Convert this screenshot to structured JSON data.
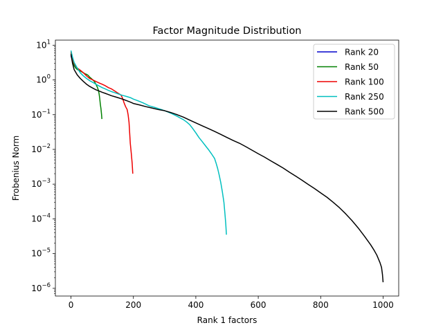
{
  "chart_data": {
    "type": "line",
    "title": "Factor Magnitude Distribution",
    "xlabel": "Rank 1 factors",
    "ylabel": "Frobenius Norm",
    "xlim": [
      -50,
      1050
    ],
    "ylim": [
      6e-07,
      14
    ],
    "yscale": "log",
    "grid": false,
    "legend_loc": "top-right",
    "x_ticks": [
      0,
      200,
      400,
      600,
      800,
      1000
    ],
    "y_ticks": [
      {
        "value": 10,
        "label": "10^1"
      },
      {
        "value": 1,
        "label": "10^0"
      },
      {
        "value": 0.1,
        "label": "10^-1"
      },
      {
        "value": 0.01,
        "label": "10^-2"
      },
      {
        "value": 0.001,
        "label": "10^-3"
      },
      {
        "value": 0.0001,
        "label": "10^-4"
      },
      {
        "value": 1e-05,
        "label": "10^-5"
      },
      {
        "value": 1e-06,
        "label": "10^-6"
      }
    ],
    "series": [
      {
        "name": "Rank 20",
        "color": "#0000cc",
        "points": [
          [
            0,
            5.0
          ],
          [
            3,
            4.0
          ],
          [
            6,
            3.5
          ],
          [
            9,
            3.1
          ],
          [
            12,
            2.8
          ],
          [
            15,
            2.5
          ],
          [
            18,
            2.3
          ],
          [
            20,
            2.2
          ]
        ]
      },
      {
        "name": "Rank 50",
        "color": "#008000",
        "points": [
          [
            0,
            6.0
          ],
          [
            5,
            3.5
          ],
          [
            10,
            2.6
          ],
          [
            15,
            2.2
          ],
          [
            20,
            2.0
          ],
          [
            25,
            1.9
          ],
          [
            30,
            1.8
          ],
          [
            35,
            1.7
          ],
          [
            40,
            1.6
          ],
          [
            45,
            1.5
          ],
          [
            50,
            1.45
          ],
          [
            55,
            1.35
          ],
          [
            60,
            1.2
          ],
          [
            65,
            1.1
          ],
          [
            70,
            1.0
          ],
          [
            75,
            0.9
          ],
          [
            80,
            0.75
          ],
          [
            85,
            0.6
          ],
          [
            88,
            0.5
          ],
          [
            90,
            0.4
          ],
          [
            92,
            0.3
          ],
          [
            94,
            0.2
          ],
          [
            96,
            0.15
          ],
          [
            98,
            0.1
          ],
          [
            99,
            0.075
          ]
        ]
      },
      {
        "name": "Rank 100",
        "color": "#ee0000",
        "points": [
          [
            0,
            6.5
          ],
          [
            5,
            4.0
          ],
          [
            10,
            3.0
          ],
          [
            20,
            2.2
          ],
          [
            30,
            1.9
          ],
          [
            40,
            1.6
          ],
          [
            50,
            1.3
          ],
          [
            60,
            1.1
          ],
          [
            70,
            1.0
          ],
          [
            80,
            0.9
          ],
          [
            90,
            0.82
          ],
          [
            100,
            0.75
          ],
          [
            110,
            0.68
          ],
          [
            120,
            0.6
          ],
          [
            130,
            0.55
          ],
          [
            140,
            0.48
          ],
          [
            150,
            0.42
          ],
          [
            160,
            0.37
          ],
          [
            165,
            0.3
          ],
          [
            170,
            0.22
          ],
          [
            175,
            0.17
          ],
          [
            180,
            0.14
          ],
          [
            183,
            0.1
          ],
          [
            186,
            0.06
          ],
          [
            188,
            0.03
          ],
          [
            190,
            0.015
          ],
          [
            193,
            0.008
          ],
          [
            196,
            0.004
          ],
          [
            198,
            0.002
          ]
        ]
      },
      {
        "name": "Rank 250",
        "color": "#00bfbf",
        "points": [
          [
            0,
            7.0
          ],
          [
            5,
            4.5
          ],
          [
            10,
            3.2
          ],
          [
            20,
            2.2
          ],
          [
            30,
            1.6
          ],
          [
            40,
            1.3
          ],
          [
            50,
            1.1
          ],
          [
            60,
            0.95
          ],
          [
            70,
            0.85
          ],
          [
            80,
            0.75
          ],
          [
            90,
            0.67
          ],
          [
            100,
            0.6
          ],
          [
            110,
            0.55
          ],
          [
            120,
            0.5
          ],
          [
            130,
            0.46
          ],
          [
            140,
            0.43
          ],
          [
            150,
            0.4
          ],
          [
            160,
            0.37
          ],
          [
            170,
            0.35
          ],
          [
            180,
            0.33
          ],
          [
            190,
            0.31
          ],
          [
            200,
            0.28
          ],
          [
            210,
            0.26
          ],
          [
            220,
            0.24
          ],
          [
            230,
            0.22
          ],
          [
            240,
            0.2
          ],
          [
            250,
            0.18
          ],
          [
            260,
            0.17
          ],
          [
            270,
            0.16
          ],
          [
            280,
            0.15
          ],
          [
            290,
            0.14
          ],
          [
            300,
            0.13
          ],
          [
            310,
            0.12
          ],
          [
            320,
            0.11
          ],
          [
            330,
            0.1
          ],
          [
            340,
            0.09
          ],
          [
            350,
            0.08
          ],
          [
            360,
            0.072
          ],
          [
            370,
            0.062
          ],
          [
            380,
            0.052
          ],
          [
            390,
            0.04
          ],
          [
            400,
            0.03
          ],
          [
            410,
            0.022
          ],
          [
            420,
            0.017
          ],
          [
            430,
            0.013
          ],
          [
            440,
            0.01
          ],
          [
            450,
            0.0075
          ],
          [
            460,
            0.0055
          ],
          [
            465,
            0.004
          ],
          [
            470,
            0.0028
          ],
          [
            475,
            0.0018
          ],
          [
            480,
            0.0011
          ],
          [
            485,
            0.0006
          ],
          [
            490,
            0.0003
          ],
          [
            493,
            0.00015
          ],
          [
            496,
            7e-05
          ],
          [
            498,
            3.5e-05
          ]
        ]
      },
      {
        "name": "Rank 500",
        "color": "#000000",
        "points": [
          [
            0,
            5.5
          ],
          [
            5,
            3.0
          ],
          [
            10,
            2.0
          ],
          [
            20,
            1.4
          ],
          [
            30,
            1.1
          ],
          [
            40,
            0.9
          ],
          [
            50,
            0.75
          ],
          [
            60,
            0.65
          ],
          [
            70,
            0.58
          ],
          [
            80,
            0.52
          ],
          [
            90,
            0.48
          ],
          [
            100,
            0.44
          ],
          [
            110,
            0.41
          ],
          [
            120,
            0.38
          ],
          [
            130,
            0.35
          ],
          [
            140,
            0.33
          ],
          [
            150,
            0.31
          ],
          [
            160,
            0.29
          ],
          [
            170,
            0.27
          ],
          [
            180,
            0.25
          ],
          [
            190,
            0.23
          ],
          [
            200,
            0.21
          ],
          [
            220,
            0.19
          ],
          [
            240,
            0.17
          ],
          [
            260,
            0.155
          ],
          [
            280,
            0.14
          ],
          [
            300,
            0.13
          ],
          [
            320,
            0.115
          ],
          [
            340,
            0.1
          ],
          [
            360,
            0.085
          ],
          [
            380,
            0.07
          ],
          [
            400,
            0.058
          ],
          [
            420,
            0.048
          ],
          [
            440,
            0.04
          ],
          [
            460,
            0.033
          ],
          [
            480,
            0.027
          ],
          [
            500,
            0.022
          ],
          [
            520,
            0.018
          ],
          [
            540,
            0.015
          ],
          [
            560,
            0.012
          ],
          [
            580,
            0.0095
          ],
          [
            600,
            0.0075
          ],
          [
            620,
            0.006
          ],
          [
            640,
            0.0047
          ],
          [
            660,
            0.0037
          ],
          [
            680,
            0.0029
          ],
          [
            700,
            0.0022
          ],
          [
            720,
            0.0017
          ],
          [
            740,
            0.0013
          ],
          [
            760,
            0.00098
          ],
          [
            780,
            0.00075
          ],
          [
            800,
            0.00056
          ],
          [
            820,
            0.00042
          ],
          [
            840,
            0.0003
          ],
          [
            860,
            0.00021
          ],
          [
            880,
            0.00014
          ],
          [
            900,
            9e-05
          ],
          [
            920,
            5.5e-05
          ],
          [
            940,
            3.2e-05
          ],
          [
            960,
            1.8e-05
          ],
          [
            970,
            1.3e-05
          ],
          [
            980,
            9e-06
          ],
          [
            990,
            5.5e-06
          ],
          [
            995,
            4e-06
          ],
          [
            998,
            2.5e-06
          ],
          [
            1000,
            1.5e-06
          ]
        ]
      }
    ]
  }
}
